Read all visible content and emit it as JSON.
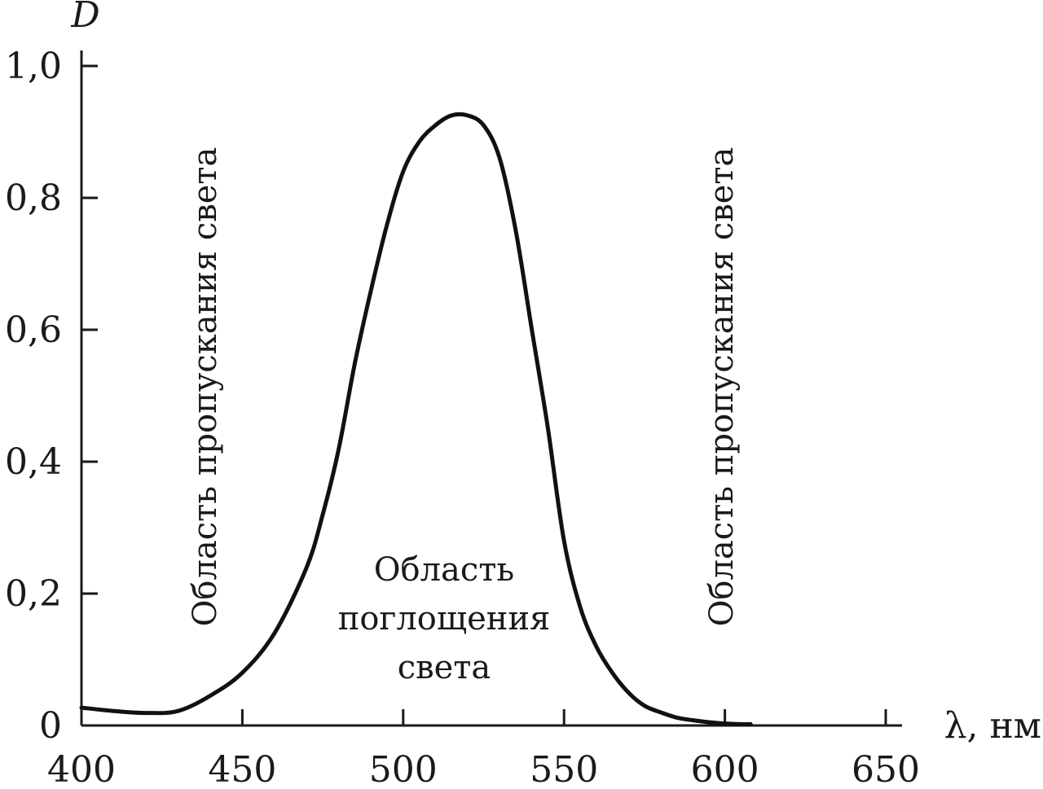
{
  "chart_data": {
    "type": "line",
    "title": "",
    "xlabel": "λ, нм",
    "ylabel": "D",
    "xlim": [
      400,
      655
    ],
    "ylim": [
      0,
      1.0
    ],
    "x_ticks": [
      400,
      450,
      500,
      550,
      600,
      650
    ],
    "x_tick_labels": [
      "400",
      "450",
      "500",
      "550",
      "600",
      "650"
    ],
    "y_ticks": [
      0,
      0.2,
      0.4,
      0.6,
      0.8,
      1.0
    ],
    "y_tick_labels": [
      "0",
      "0,2",
      "0,4",
      "0,6",
      "0,8",
      "1,0"
    ],
    "grid": false,
    "legend": "none",
    "series": [
      {
        "x": [
          400,
          410,
          420,
          430,
          440,
          450,
          460,
          470,
          475,
          480,
          485,
          490,
          495,
          500,
          505,
          510,
          515,
          520,
          525,
          530,
          535,
          540,
          545,
          550,
          555,
          560,
          565,
          570,
          575,
          580,
          585,
          590,
          595,
          600,
          605,
          608
        ],
        "y": [
          0.027,
          0.022,
          0.019,
          0.022,
          0.045,
          0.08,
          0.14,
          0.24,
          0.32,
          0.42,
          0.55,
          0.66,
          0.76,
          0.84,
          0.885,
          0.91,
          0.925,
          0.925,
          0.91,
          0.86,
          0.75,
          0.6,
          0.45,
          0.28,
          0.18,
          0.12,
          0.08,
          0.05,
          0.03,
          0.02,
          0.012,
          0.008,
          0.005,
          0.003,
          0.002,
          0.002
        ]
      }
    ],
    "annotations": [
      {
        "text": "Область пропускания света",
        "orientation": "vertical"
      },
      {
        "text": "Область пропускания света",
        "orientation": "vertical"
      },
      {
        "text": "Область поглощения света",
        "lines": [
          "Область",
          "поглощения",
          "света"
        ],
        "orientation": "horizontal"
      }
    ]
  }
}
